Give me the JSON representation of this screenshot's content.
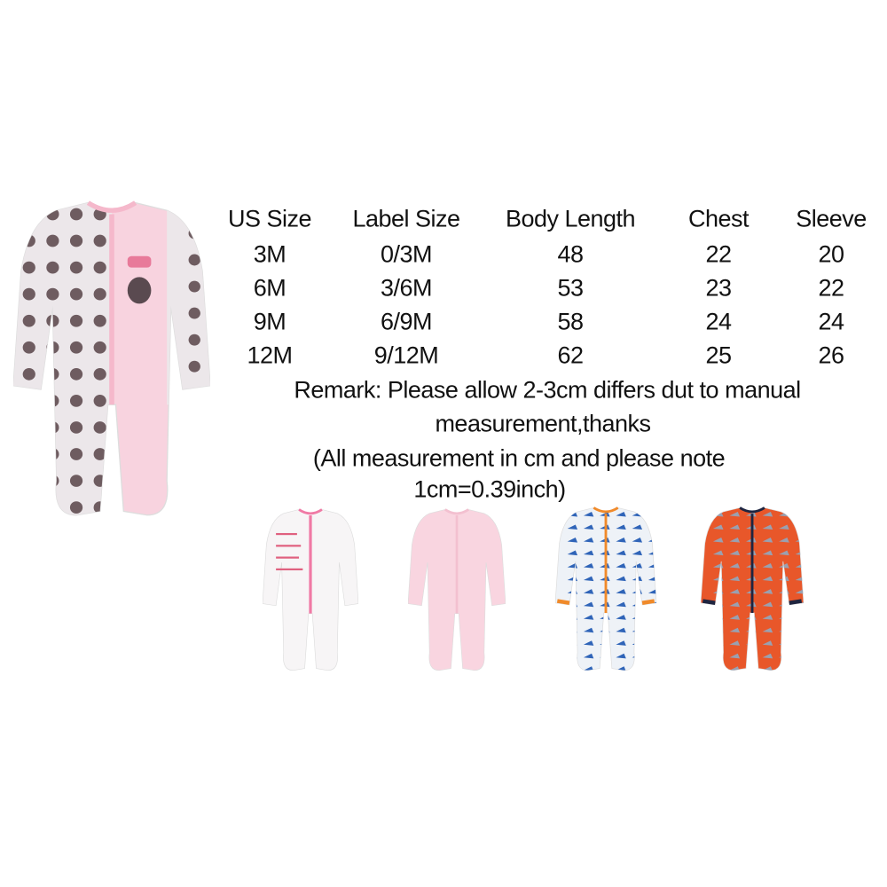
{
  "size_table": {
    "headers": [
      "US Size",
      "Label Size",
      "Body Length",
      "Chest",
      "Sleeve"
    ],
    "rows": [
      [
        "3M",
        "0/3M",
        "48",
        "22",
        "20"
      ],
      [
        "6M",
        "3/6M",
        "53",
        "23",
        "22"
      ],
      [
        "9M",
        "6/9M",
        "58",
        "24",
        "24"
      ],
      [
        "12M",
        "9/12M",
        "62",
        "25",
        "26"
      ]
    ]
  },
  "remark": {
    "line1": "Remark: Please allow 2-3cm differs dut to manual",
    "line2": "measurement,thanks",
    "line3": "(All measurement in cm and please note",
    "line4": "1cm=0.39inch)"
  },
  "products": [
    {
      "name": "pink-owl-romper",
      "body": "#f8d3df",
      "side": "#ece7ea",
      "trim": "#f5b8cb"
    },
    {
      "name": "white-mommy-daddy-romper",
      "body": "#f7f5f6",
      "side": "#f7f5f6",
      "trim": "#f07aa5"
    },
    {
      "name": "pink-romper",
      "body": "#f9d5e0",
      "side": "#f9d5e0",
      "trim": "#f3c0d0"
    },
    {
      "name": "blue-dinosaur-romper",
      "body": "#eef2f7",
      "side": "#eef2f7",
      "trim": "#f08a2a"
    },
    {
      "name": "orange-dinosaur-romper",
      "body": "#e8572a",
      "side": "#e8572a",
      "trim": "#1f2540"
    }
  ]
}
